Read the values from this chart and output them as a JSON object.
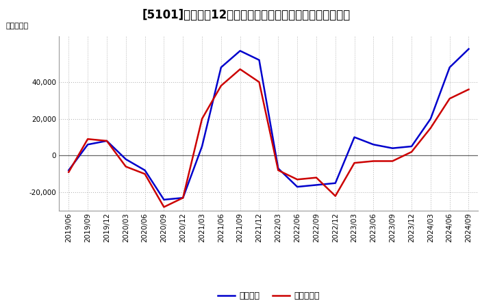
{
  "title": "[5101]　利益の12か月移動合計の対前年同期増減額の推移",
  "ylabel": "（百万円）",
  "background_color": "#ffffff",
  "plot_bg_color": "#ffffff",
  "grid_color": "#aaaaaa",
  "line_color_blue": "#0000cc",
  "line_color_red": "#cc0000",
  "legend_labels": [
    "経常利益",
    "当期純利益"
  ],
  "dates": [
    "2019/06",
    "2019/09",
    "2019/12",
    "2020/03",
    "2020/06",
    "2020/09",
    "2020/12",
    "2021/03",
    "2021/06",
    "2021/09",
    "2021/12",
    "2022/03",
    "2022/06",
    "2022/09",
    "2022/12",
    "2023/03",
    "2023/06",
    "2023/09",
    "2023/12",
    "2024/03",
    "2024/06",
    "2024/09"
  ],
  "series_blue": [
    -8000,
    6000,
    8000,
    -2000,
    -8000,
    -24000,
    -23000,
    5000,
    48000,
    57000,
    52000,
    -7000,
    -17000,
    -16000,
    -15000,
    10000,
    6000,
    4000,
    5000,
    20000,
    48000,
    58000
  ],
  "series_red": [
    -9000,
    9000,
    8000,
    -6000,
    -10000,
    -28000,
    -23000,
    20000,
    38000,
    47000,
    40000,
    -8000,
    -13000,
    -12000,
    -22000,
    -4000,
    -3000,
    -3000,
    2000,
    15000,
    31000,
    36000
  ],
  "ylim": [
    -30000,
    65000
  ],
  "yticks": [
    -20000,
    0,
    20000,
    40000
  ],
  "title_fontsize": 12,
  "axis_fontsize": 8,
  "tick_fontsize": 7.5,
  "legend_fontsize": 9
}
